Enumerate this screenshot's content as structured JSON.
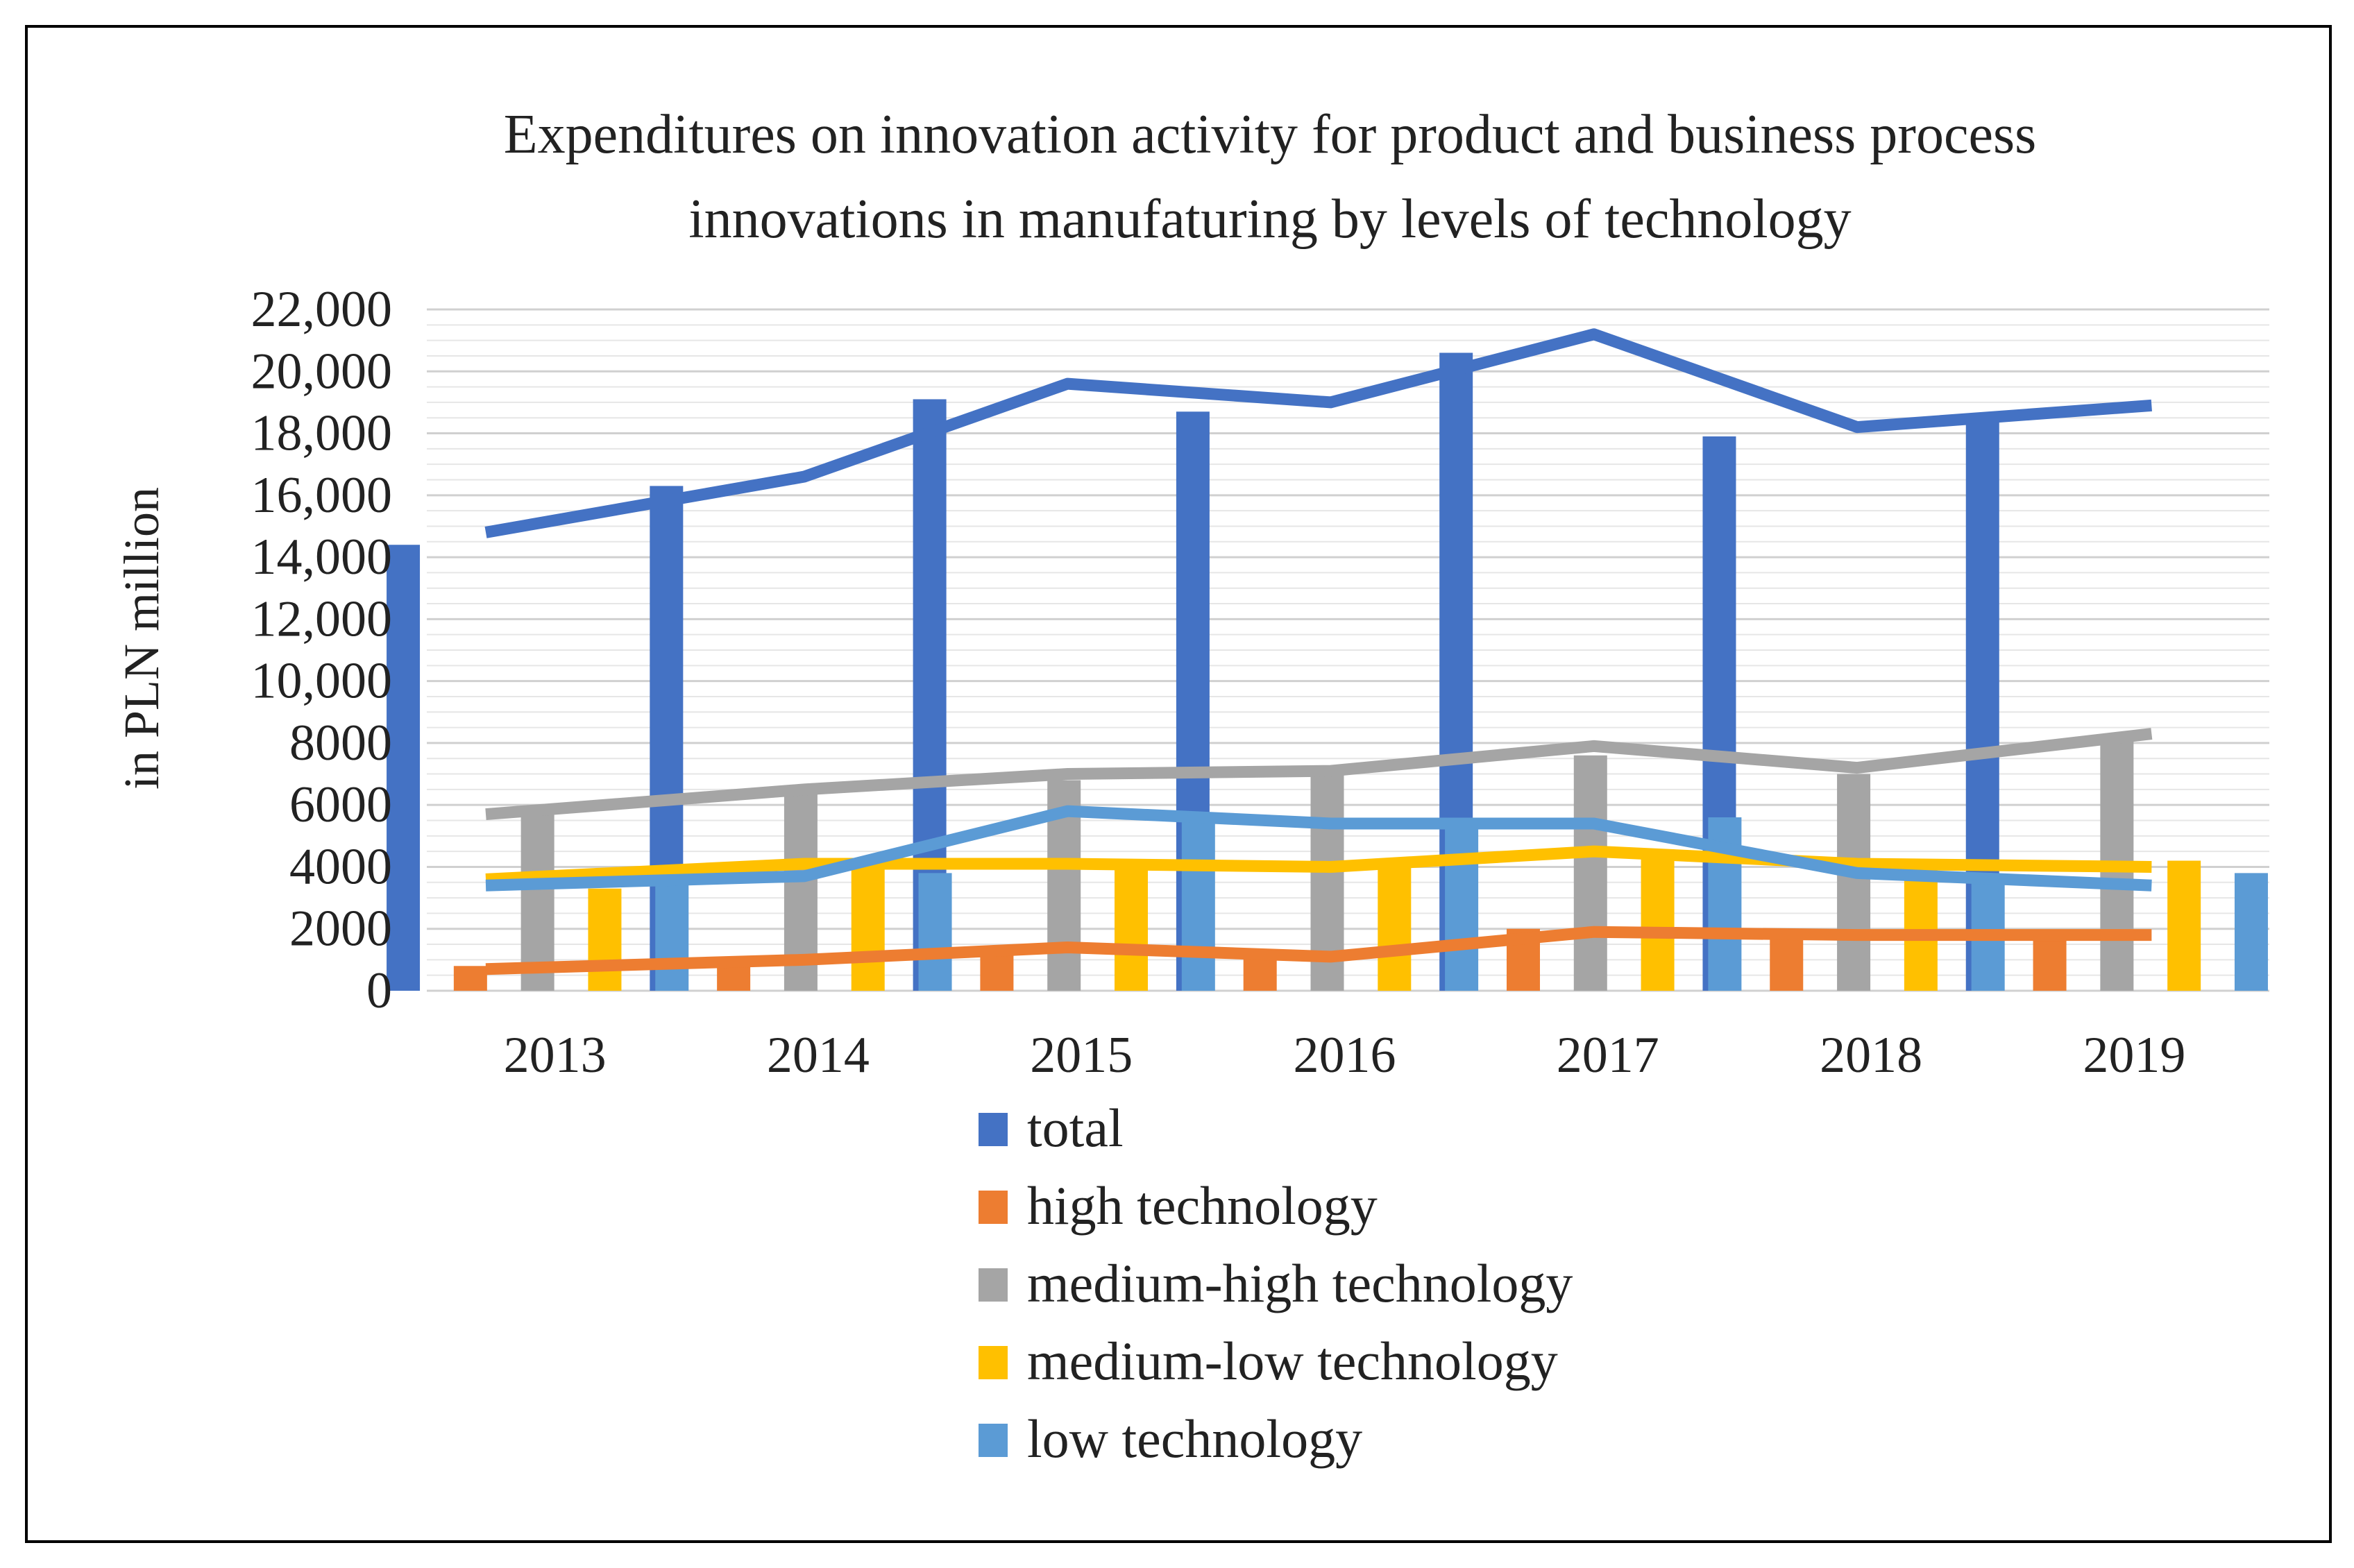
{
  "chart_data": {
    "type": "bar",
    "title_lines": [
      "Expenditures on innovation activity for product and business process",
      "innovations  in manufaturing by levels of technology"
    ],
    "ylabel": "in PLN million",
    "xlabel": "",
    "ylim": [
      0,
      22000
    ],
    "y_ticks": [
      {
        "value": 0,
        "label": "0"
      },
      {
        "value": 2000,
        "label": "2000"
      },
      {
        "value": 4000,
        "label": "4000"
      },
      {
        "value": 6000,
        "label": "6000"
      },
      {
        "value": 8000,
        "label": "8000"
      },
      {
        "value": 10000,
        "label": "10,000"
      },
      {
        "value": 12000,
        "label": "12,000"
      },
      {
        "value": 14000,
        "label": "14,000"
      },
      {
        "value": 16000,
        "label": "16,000"
      },
      {
        "value": 18000,
        "label": "18,000"
      },
      {
        "value": 20000,
        "label": "20,000"
      },
      {
        "value": 22000,
        "label": "22,000"
      }
    ],
    "minor_gridline_step": 500,
    "categories": [
      "2013",
      "2014",
      "2015",
      "2016",
      "2017",
      "2018",
      "2019"
    ],
    "series": [
      {
        "name": "total",
        "color": "#4472C4",
        "bar_values": [
          14400,
          16300,
          19100,
          18700,
          20600,
          17900,
          18500
        ],
        "line_values": [
          14800,
          16600,
          19600,
          19000,
          21200,
          18200,
          18900
        ]
      },
      {
        "name": "high technology",
        "color": "#ED7D31",
        "bar_values": [
          800,
          1000,
          1300,
          1100,
          2000,
          2000,
          1800
        ],
        "line_values": [
          700,
          1000,
          1400,
          1100,
          1900,
          1800,
          1800
        ]
      },
      {
        "name": "medium-high technology",
        "color": "#A5A5A5",
        "bar_values": [
          5800,
          6400,
          6800,
          7100,
          7600,
          7000,
          8300
        ],
        "line_values": [
          5700,
          6500,
          7000,
          7100,
          7900,
          7200,
          8300
        ]
      },
      {
        "name": "medium-low technology",
        "color": "#FFC000",
        "bar_values": [
          3300,
          4100,
          4100,
          4000,
          4400,
          4000,
          4200
        ],
        "line_values": [
          3600,
          4100,
          4100,
          4000,
          4500,
          4100,
          4000
        ]
      },
      {
        "name": "low technology",
        "color": "#5B9BD5",
        "bar_values": [
          3600,
          3800,
          5500,
          5500,
          5600,
          3600,
          3800
        ],
        "line_values": [
          3400,
          3700,
          5800,
          5400,
          5400,
          3800,
          3400
        ]
      }
    ],
    "legend_position": "bottom-center"
  }
}
